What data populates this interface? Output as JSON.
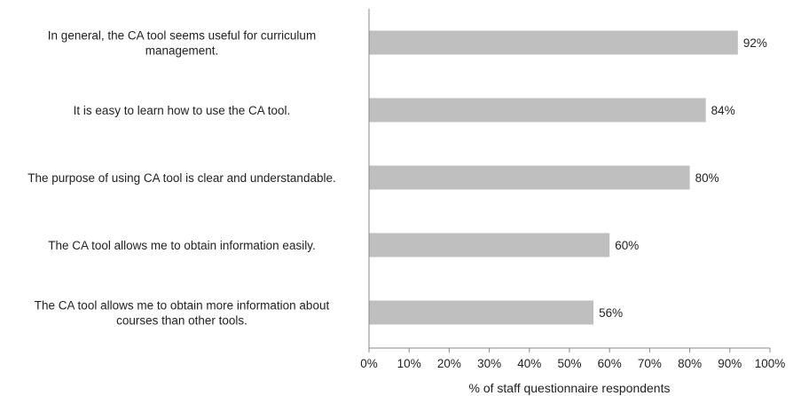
{
  "chart_data": {
    "type": "bar",
    "orientation": "horizontal",
    "categories": [
      [
        "In general, the CA tool seems useful for curriculum",
        "management."
      ],
      [
        "It is easy to learn how to use the CA tool."
      ],
      [
        "The purpose of using CA tool is clear and understandable."
      ],
      [
        "The CA tool allows me to obtain information easily."
      ],
      [
        "The CA tool allows me to obtain more information about",
        "courses than other tools."
      ]
    ],
    "values": [
      92,
      84,
      80,
      60,
      56
    ],
    "data_labels": [
      "92%",
      "84%",
      "80%",
      "60%",
      "56%"
    ],
    "xlim": [
      0,
      100
    ],
    "x_ticks": [
      0,
      10,
      20,
      30,
      40,
      50,
      60,
      70,
      80,
      90,
      100
    ],
    "x_tick_labels": [
      "0%",
      "10%",
      "20%",
      "30%",
      "40%",
      "50%",
      "60%",
      "70%",
      "80%",
      "90%",
      "100%"
    ],
    "xlabel": "% of staff questionnaire respondents",
    "ylabel": "",
    "title": "",
    "grid": false,
    "legend": "none",
    "bar_color": "#bfbfbf",
    "axis_color": "#888888"
  }
}
